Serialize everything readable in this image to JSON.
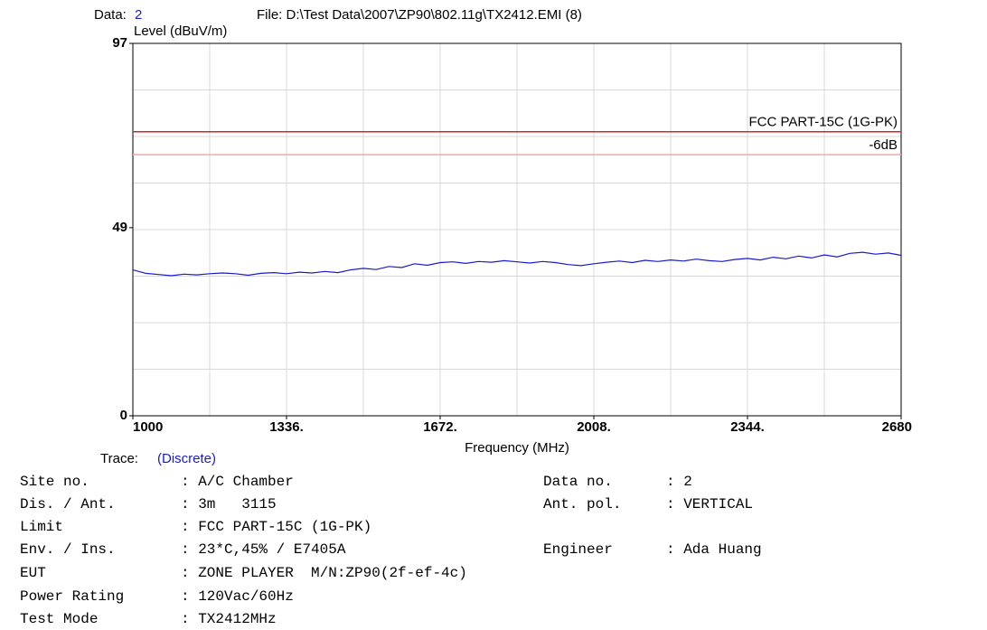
{
  "header": {
    "data_label": "Data:",
    "data_value": "2",
    "file": "File: D:\\Test Data\\2007\\ZP90\\802.11g\\TX2412.EMI  (8)"
  },
  "chart_data": {
    "type": "line",
    "ylabel": "Level (dBuV/m)",
    "xlabel": "Frequency (MHz)",
    "xlim": [
      1000,
      2680
    ],
    "xticks": [
      1000,
      {
        "value": 1336,
        "label": "1336."
      },
      {
        "value": 1672,
        "label": "1672."
      },
      {
        "value": 2008,
        "label": "2008."
      },
      {
        "value": 2344,
        "label": "2344."
      },
      2680
    ],
    "ylim": [
      0,
      97
    ],
    "yticks": [
      0,
      49,
      97
    ],
    "grid": true,
    "limits": [
      {
        "name": "FCC PART-15C (1G-PK)",
        "value": 74,
        "color": "#e02020"
      },
      {
        "name": "-6dB",
        "value": 68,
        "color": "#f4a8a8"
      }
    ],
    "x": [
      1000,
      1028,
      1056,
      1084,
      1112,
      1140,
      1168,
      1196,
      1224,
      1252,
      1280,
      1308,
      1336,
      1364,
      1392,
      1420,
      1448,
      1476,
      1504,
      1532,
      1560,
      1588,
      1616,
      1644,
      1672,
      1700,
      1728,
      1756,
      1784,
      1812,
      1840,
      1868,
      1896,
      1924,
      1952,
      1980,
      2008,
      2036,
      2064,
      2092,
      2120,
      2148,
      2176,
      2204,
      2232,
      2260,
      2288,
      2316,
      2344,
      2372,
      2400,
      2428,
      2456,
      2484,
      2512,
      2540,
      2568,
      2596,
      2624,
      2652,
      2680
    ],
    "series": [
      {
        "color": "#1a1ad0",
        "values": [
          38.0,
          37.1,
          36.8,
          36.5,
          36.9,
          36.7,
          37.0,
          37.2,
          37.0,
          36.6,
          37.1,
          37.3,
          37.0,
          37.4,
          37.2,
          37.6,
          37.3,
          38.0,
          38.4,
          38.1,
          38.9,
          38.6,
          39.6,
          39.2,
          39.9,
          40.1,
          39.7,
          40.2,
          40.0,
          40.4,
          40.1,
          39.8,
          40.2,
          39.9,
          39.4,
          39.1,
          39.6,
          40.0,
          40.3,
          39.9,
          40.5,
          40.2,
          40.6,
          40.3,
          40.8,
          40.4,
          40.2,
          40.7,
          41.0,
          40.6,
          41.3,
          40.9,
          41.6,
          41.1,
          41.9,
          41.4,
          42.3,
          42.6,
          42.1,
          42.4,
          41.8
        ]
      }
    ]
  },
  "trace": {
    "label": "Trace:",
    "value": "(Discrete)"
  },
  "info": {
    "left": [
      [
        "Site no.",
        ": A/C Chamber"
      ],
      [
        "Dis. / Ant.",
        ": 3m   3115"
      ],
      [
        "Limit",
        ": FCC PART-15C (1G-PK)"
      ],
      [
        "Env. / Ins.",
        ": 23*C,45% / E7405A"
      ],
      [
        "EUT",
        ": ZONE PLAYER  M/N:ZP90(2f-ef-4c)"
      ],
      [
        "Power Rating",
        ": 120Vac/60Hz"
      ],
      [
        "Test Mode",
        ": TX2412MHz"
      ]
    ],
    "right": [
      [
        "Data no.",
        ": 2"
      ],
      [
        "Ant. pol.",
        ": VERTICAL"
      ],
      [
        "Engineer",
        ": Ada Huang"
      ]
    ]
  }
}
